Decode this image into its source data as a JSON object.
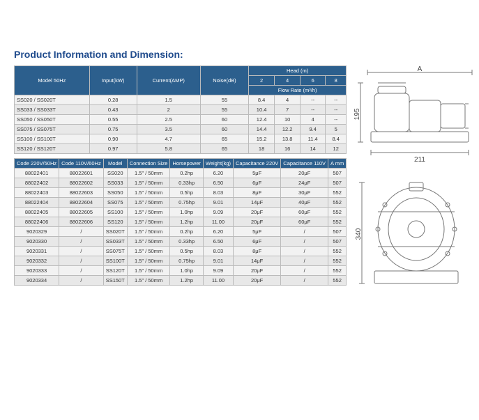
{
  "title": "Product Information and Dimension:",
  "colors": {
    "header_bg": "#2c5f8d",
    "header_fg": "#ffffff",
    "title_fg": "#1e4a8c",
    "row_odd": "#f2f2f2",
    "row_even": "#e8e8e8",
    "border": "#bbbbbb",
    "diagram_stroke": "#888888"
  },
  "table1": {
    "head": {
      "model": "Model 50Hz",
      "input": "Input(kW)",
      "current": "Current(AMP)",
      "noise": "Noise(dB)",
      "head": "Head (m)",
      "flow": "Flow Rate (m³/h)",
      "fr": [
        "2",
        "4",
        "6",
        "8"
      ]
    },
    "rows": [
      {
        "m": "SS020 / SS020T",
        "in": "0.28",
        "c": "1.5",
        "n": "55",
        "f1": "8.4",
        "f2": "4",
        "f3": "--",
        "f4": "--"
      },
      {
        "m": "SS033 / SS033T",
        "in": "0.43",
        "c": "2",
        "n": "55",
        "f1": "10.4",
        "f2": "7",
        "f3": "--",
        "f4": "--"
      },
      {
        "m": "SS050 / SS050T",
        "in": "0.55",
        "c": "2.5",
        "n": "60",
        "f1": "12.4",
        "f2": "10",
        "f3": "4",
        "f4": "--"
      },
      {
        "m": "SS075 / SS075T",
        "in": "0.75",
        "c": "3.5",
        "n": "60",
        "f1": "14.4",
        "f2": "12.2",
        "f3": "9.4",
        "f4": "5"
      },
      {
        "m": "SS100 / SS100T",
        "in": "0.90",
        "c": "4.7",
        "n": "65",
        "f1": "15.2",
        "f2": "13.8",
        "f3": "11.4",
        "f4": "8.4"
      },
      {
        "m": "SS120 / SS120T",
        "in": "0.97",
        "c": "5.8",
        "n": "65",
        "f1": "18",
        "f2": "16",
        "f3": "14",
        "f4": "12"
      }
    ]
  },
  "table2": {
    "head": {
      "c220": "Code 220V/50Hz",
      "c110": "Code 110V/60Hz",
      "model": "Model",
      "conn": "Connection Size",
      "hp": "Horsepower",
      "wt": "Weight(kg)",
      "cap220": "Capacitance 220V",
      "cap110": "Capacitance 110V",
      "amm": "A mm"
    },
    "rows": [
      {
        "c2": "88022401",
        "c1": "88022601",
        "m": "SS020",
        "cs": "1.5\" / 50mm",
        "hp": "0.2hp",
        "w": "6.20",
        "d2": "5μF",
        "d1": "20μF",
        "a": "507"
      },
      {
        "c2": "88022402",
        "c1": "88022602",
        "m": "SS033",
        "cs": "1.5\" / 50mm",
        "hp": "0.33hp",
        "w": "6.50",
        "d2": "6μF",
        "d1": "24μF",
        "a": "507"
      },
      {
        "c2": "88022403",
        "c1": "88022603",
        "m": "SS050",
        "cs": "1.5\" / 50mm",
        "hp": "0.5hp",
        "w": "8.03",
        "d2": "8μF",
        "d1": "30μF",
        "a": "552"
      },
      {
        "c2": "88022404",
        "c1": "88022604",
        "m": "SS075",
        "cs": "1.5\" / 50mm",
        "hp": "0.75hp",
        "w": "9.01",
        "d2": "14μF",
        "d1": "40μF",
        "a": "552"
      },
      {
        "c2": "88022405",
        "c1": "88022605",
        "m": "SS100",
        "cs": "1.5\" / 50mm",
        "hp": "1.0hp",
        "w": "9.09",
        "d2": "20μF",
        "d1": "60μF",
        "a": "552"
      },
      {
        "c2": "88022406",
        "c1": "88022606",
        "m": "SS120",
        "cs": "1.5\" / 50mm",
        "hp": "1.2hp",
        "w": "11.00",
        "d2": "20μF",
        "d1": "60μF",
        "a": "552"
      },
      {
        "c2": "9020329",
        "c1": "/",
        "m": "SS020T",
        "cs": "1.5\" / 50mm",
        "hp": "0.2hp",
        "w": "6.20",
        "d2": "5μF",
        "d1": "/",
        "a": "507"
      },
      {
        "c2": "9020330",
        "c1": "/",
        "m": "SS033T",
        "cs": "1.5\" / 50mm",
        "hp": "0.33hp",
        "w": "6.50",
        "d2": "6μF",
        "d1": "/",
        "a": "507"
      },
      {
        "c2": "9020331",
        "c1": "/",
        "m": "SS075T",
        "cs": "1.5\" / 50mm",
        "hp": "0.5hp",
        "w": "8.03",
        "d2": "8μF",
        "d1": "/",
        "a": "552"
      },
      {
        "c2": "9020332",
        "c1": "/",
        "m": "SS100T",
        "cs": "1.5\" / 50mm",
        "hp": "0.75hp",
        "w": "9.01",
        "d2": "14μF",
        "d1": "/",
        "a": "552"
      },
      {
        "c2": "9020333",
        "c1": "/",
        "m": "SS120T",
        "cs": "1.5\" / 50mm",
        "hp": "1.0hp",
        "w": "9.09",
        "d2": "20μF",
        "d1": "/",
        "a": "552"
      },
      {
        "c2": "9020334",
        "c1": "/",
        "m": "SS150T",
        "cs": "1.5\" / 50mm",
        "hp": "1.2hp",
        "w": "11.00",
        "d2": "20μF",
        "d1": "/",
        "a": "552"
      }
    ]
  },
  "dims": {
    "A": "A",
    "h1": "195",
    "w1": "211",
    "h2": "340"
  }
}
